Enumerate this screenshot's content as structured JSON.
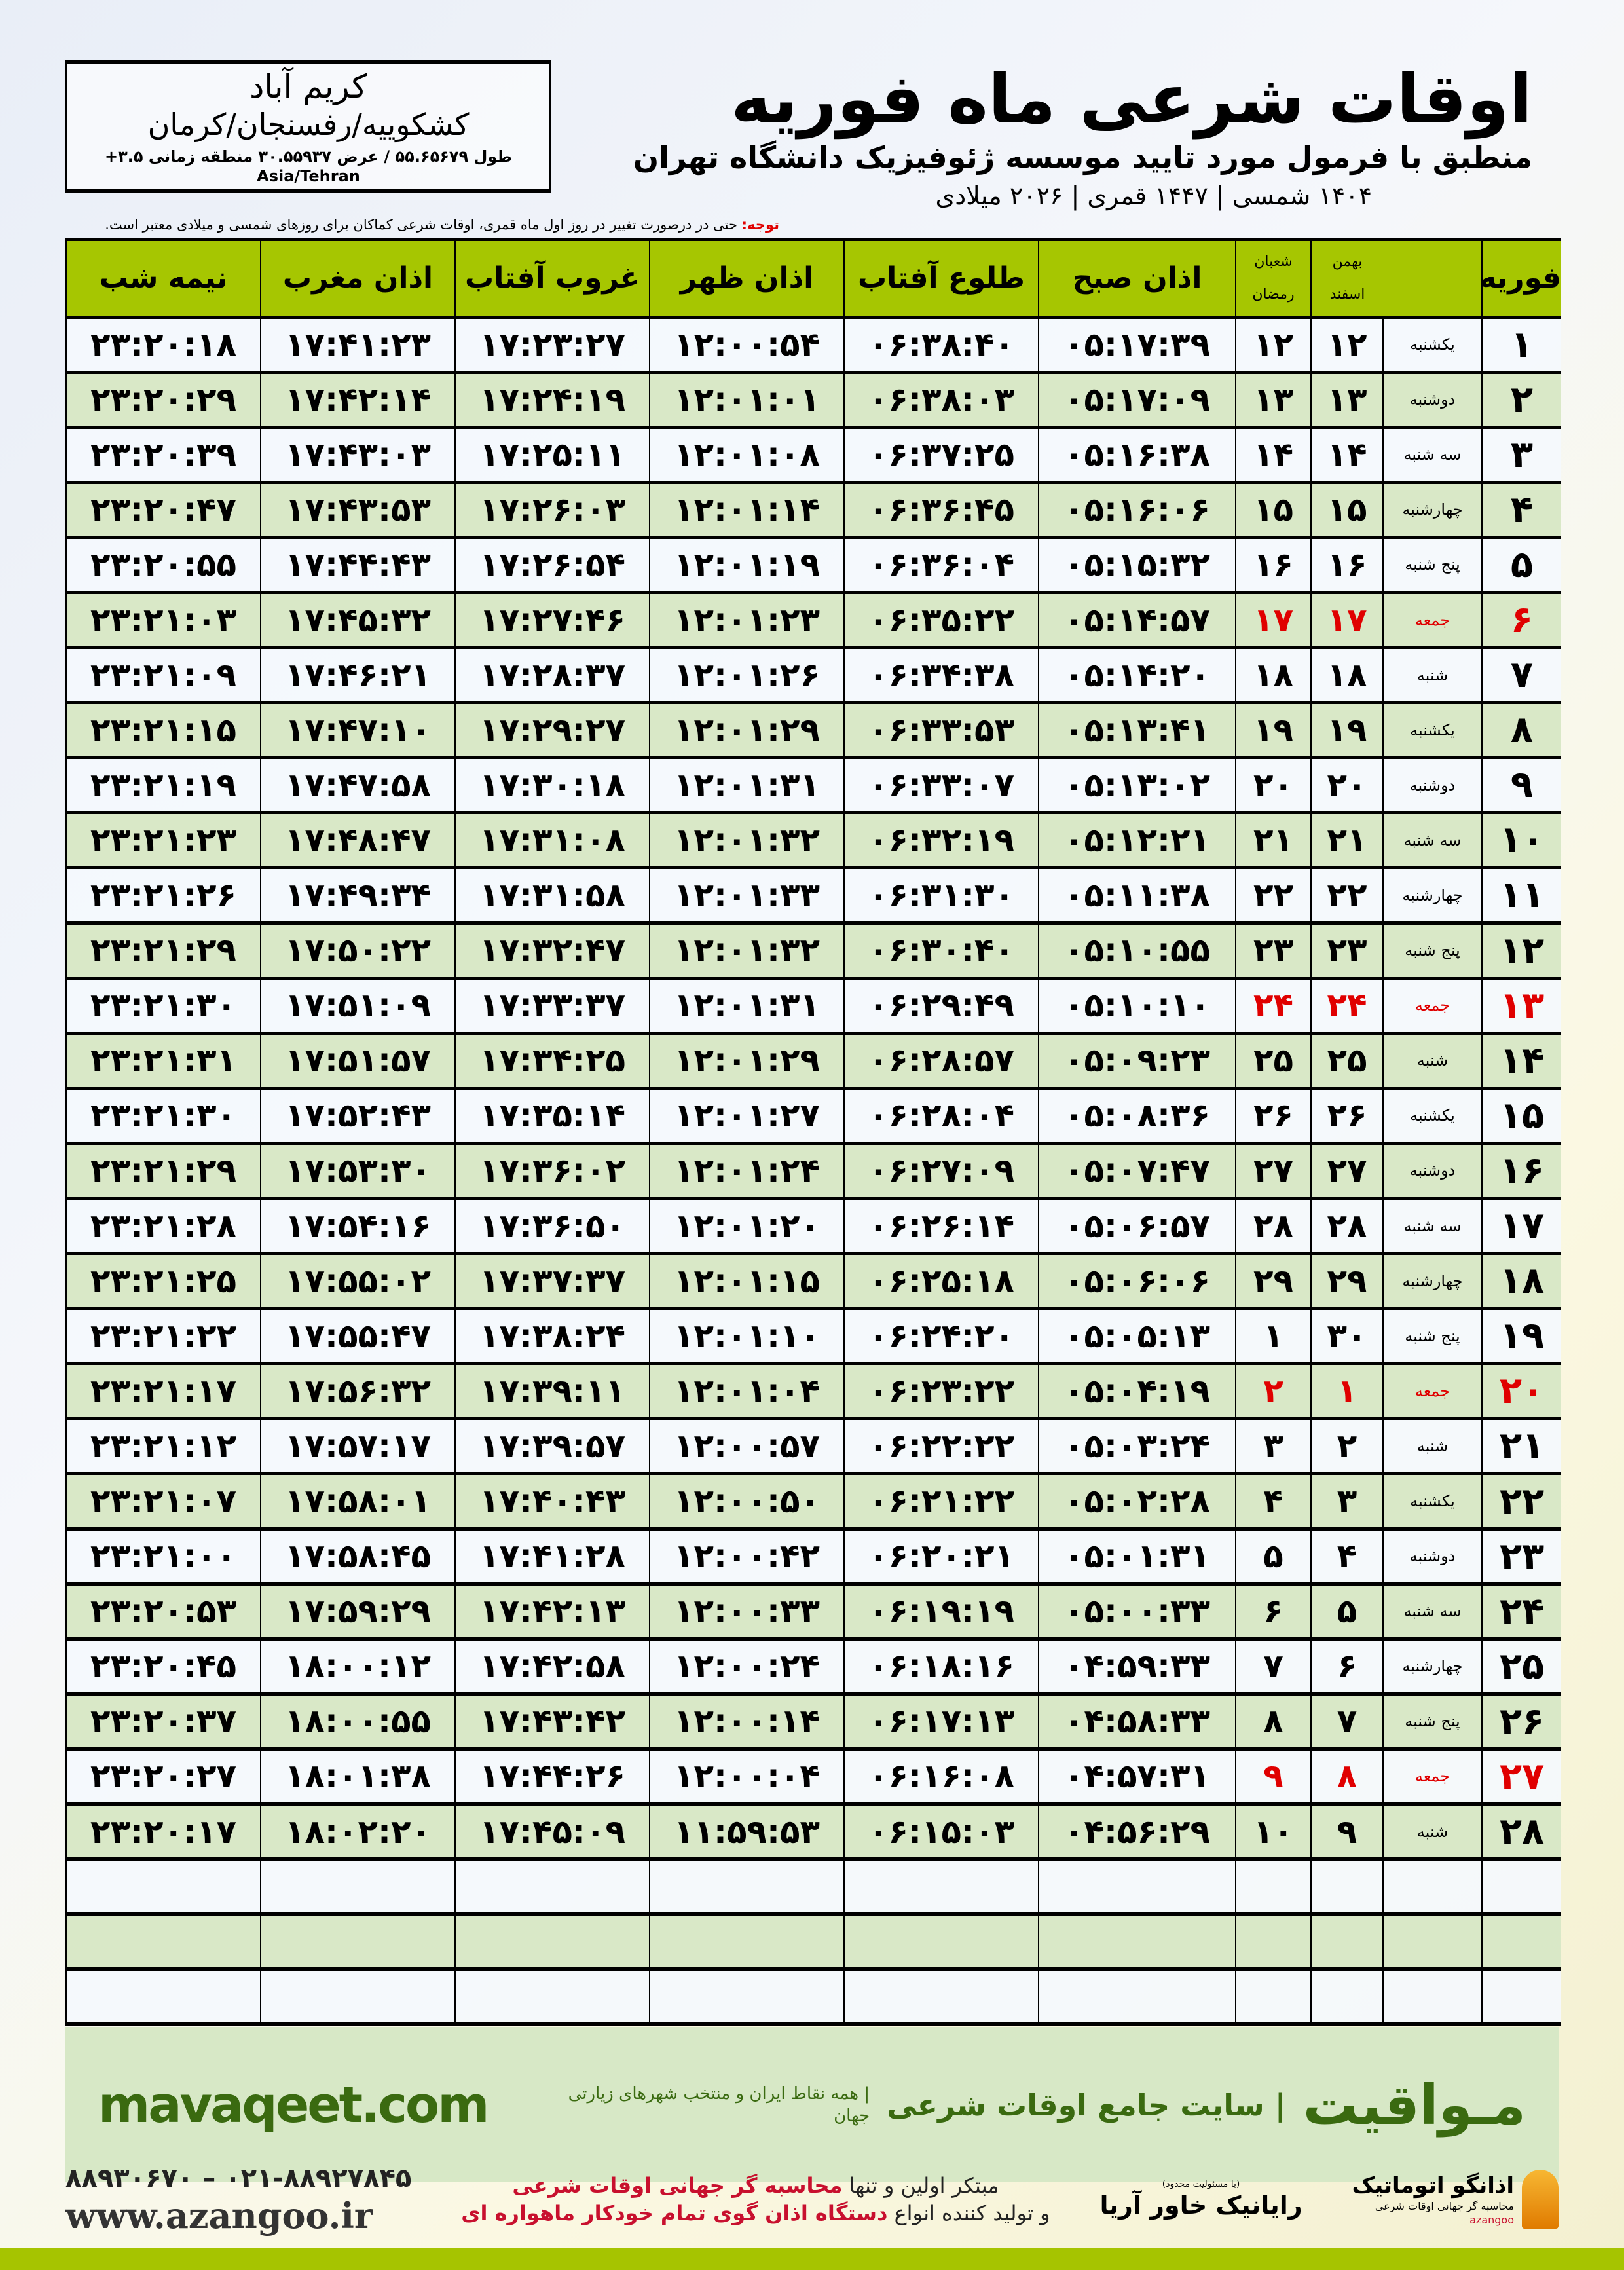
{
  "header": {
    "title": "اوقات شرعی ماه فوریه",
    "subtitle": "منطبق با فرمول مورد تایید موسسه ژئوفیزیک دانشگاه تهران",
    "dateline": "۱۴۰۴ شمسی | ۱۴۴۷ قمری | ۲۰۲۶ میلادی"
  },
  "location": {
    "city": "کریم آباد",
    "region": "کشکوییه/رفسنجان/کرمان",
    "coords": "طول ۵۵.۶۵۶۷۹ / عرض ۳۰.۵۵۹۳۷ منطقه زمانی ۳.۵+ Asia/Tehran"
  },
  "note": {
    "label": "توجه:",
    "text": " حتی در درصورت تغییر در روز اول ماه قمری، اوقات شرعی کماکان برای روزهای شمسی و میلادی معتبر است."
  },
  "columns": {
    "month": "فوریه",
    "shamsi_top": "بهمن",
    "shamsi_bottom": "اسفند",
    "qamari_top": "شعبان",
    "qamari_bottom": "رمضان",
    "fajr": "اذان صبح",
    "sunrise": "طلوع آفتاب",
    "dhuhr": "اذان ظهر",
    "sunset": "غروب آفتاب",
    "maghrib": "اذان مغرب",
    "midnight": "نیمه شب"
  },
  "colors": {
    "header_green": "#a6c601",
    "row_green": "#d9e8c7",
    "friday_red": "#e00000",
    "brand_green": "#3a6a10"
  },
  "rows": [
    [
      "۱",
      "یکشنبه",
      "۱۲",
      "۱۲",
      "۰۵:۱۷:۳۹",
      "۰۶:۳۸:۴۰",
      "۱۲:۰۰:۵۴",
      "۱۷:۲۳:۲۷",
      "۱۷:۴۱:۲۳",
      "۲۳:۲۰:۱۸"
    ],
    [
      "۲",
      "دوشنبه",
      "۱۳",
      "۱۳",
      "۰۵:۱۷:۰۹",
      "۰۶:۳۸:۰۳",
      "۱۲:۰۱:۰۱",
      "۱۷:۲۴:۱۹",
      "۱۷:۴۲:۱۴",
      "۲۳:۲۰:۲۹"
    ],
    [
      "۳",
      "سه شنبه",
      "۱۴",
      "۱۴",
      "۰۵:۱۶:۳۸",
      "۰۶:۳۷:۲۵",
      "۱۲:۰۱:۰۸",
      "۱۷:۲۵:۱۱",
      "۱۷:۴۳:۰۳",
      "۲۳:۲۰:۳۹"
    ],
    [
      "۴",
      "چهارشنبه",
      "۱۵",
      "۱۵",
      "۰۵:۱۶:۰۶",
      "۰۶:۳۶:۴۵",
      "۱۲:۰۱:۱۴",
      "۱۷:۲۶:۰۳",
      "۱۷:۴۳:۵۳",
      "۲۳:۲۰:۴۷"
    ],
    [
      "۵",
      "پنج شنبه",
      "۱۶",
      "۱۶",
      "۰۵:۱۵:۳۲",
      "۰۶:۳۶:۰۴",
      "۱۲:۰۱:۱۹",
      "۱۷:۲۶:۵۴",
      "۱۷:۴۴:۴۳",
      "۲۳:۲۰:۵۵"
    ],
    [
      "۶",
      "جمعه",
      "۱۷",
      "۱۷",
      "۰۵:۱۴:۵۷",
      "۰۶:۳۵:۲۲",
      "۱۲:۰۱:۲۳",
      "۱۷:۲۷:۴۶",
      "۱۷:۴۵:۳۲",
      "۲۳:۲۱:۰۳"
    ],
    [
      "۷",
      "شنبه",
      "۱۸",
      "۱۸",
      "۰۵:۱۴:۲۰",
      "۰۶:۳۴:۳۸",
      "۱۲:۰۱:۲۶",
      "۱۷:۲۸:۳۷",
      "۱۷:۴۶:۲۱",
      "۲۳:۲۱:۰۹"
    ],
    [
      "۸",
      "یکشنبه",
      "۱۹",
      "۱۹",
      "۰۵:۱۳:۴۱",
      "۰۶:۳۳:۵۳",
      "۱۲:۰۱:۲۹",
      "۱۷:۲۹:۲۷",
      "۱۷:۴۷:۱۰",
      "۲۳:۲۱:۱۵"
    ],
    [
      "۹",
      "دوشنبه",
      "۲۰",
      "۲۰",
      "۰۵:۱۳:۰۲",
      "۰۶:۳۳:۰۷",
      "۱۲:۰۱:۳۱",
      "۱۷:۳۰:۱۸",
      "۱۷:۴۷:۵۸",
      "۲۳:۲۱:۱۹"
    ],
    [
      "۱۰",
      "سه شنبه",
      "۲۱",
      "۲۱",
      "۰۵:۱۲:۲۱",
      "۰۶:۳۲:۱۹",
      "۱۲:۰۱:۳۲",
      "۱۷:۳۱:۰۸",
      "۱۷:۴۸:۴۷",
      "۲۳:۲۱:۲۳"
    ],
    [
      "۱۱",
      "چهارشنبه",
      "۲۲",
      "۲۲",
      "۰۵:۱۱:۳۸",
      "۰۶:۳۱:۳۰",
      "۱۲:۰۱:۳۳",
      "۱۷:۳۱:۵۸",
      "۱۷:۴۹:۳۴",
      "۲۳:۲۱:۲۶"
    ],
    [
      "۱۲",
      "پنج شنبه",
      "۲۳",
      "۲۳",
      "۰۵:۱۰:۵۵",
      "۰۶:۳۰:۴۰",
      "۱۲:۰۱:۳۲",
      "۱۷:۳۲:۴۷",
      "۱۷:۵۰:۲۲",
      "۲۳:۲۱:۲۹"
    ],
    [
      "۱۳",
      "جمعه",
      "۲۴",
      "۲۴",
      "۰۵:۱۰:۱۰",
      "۰۶:۲۹:۴۹",
      "۱۲:۰۱:۳۱",
      "۱۷:۳۳:۳۷",
      "۱۷:۵۱:۰۹",
      "۲۳:۲۱:۳۰"
    ],
    [
      "۱۴",
      "شنبه",
      "۲۵",
      "۲۵",
      "۰۵:۰۹:۲۳",
      "۰۶:۲۸:۵۷",
      "۱۲:۰۱:۲۹",
      "۱۷:۳۴:۲۵",
      "۱۷:۵۱:۵۷",
      "۲۳:۲۱:۳۱"
    ],
    [
      "۱۵",
      "یکشنبه",
      "۲۶",
      "۲۶",
      "۰۵:۰۸:۳۶",
      "۰۶:۲۸:۰۴",
      "۱۲:۰۱:۲۷",
      "۱۷:۳۵:۱۴",
      "۱۷:۵۲:۴۳",
      "۲۳:۲۱:۳۰"
    ],
    [
      "۱۶",
      "دوشنبه",
      "۲۷",
      "۲۷",
      "۰۵:۰۷:۴۷",
      "۰۶:۲۷:۰۹",
      "۱۲:۰۱:۲۴",
      "۱۷:۳۶:۰۲",
      "۱۷:۵۳:۳۰",
      "۲۳:۲۱:۲۹"
    ],
    [
      "۱۷",
      "سه شنبه",
      "۲۸",
      "۲۸",
      "۰۵:۰۶:۵۷",
      "۰۶:۲۶:۱۴",
      "۱۲:۰۱:۲۰",
      "۱۷:۳۶:۵۰",
      "۱۷:۵۴:۱۶",
      "۲۳:۲۱:۲۸"
    ],
    [
      "۱۸",
      "چهارشنبه",
      "۲۹",
      "۲۹",
      "۰۵:۰۶:۰۶",
      "۰۶:۲۵:۱۸",
      "۱۲:۰۱:۱۵",
      "۱۷:۳۷:۳۷",
      "۱۷:۵۵:۰۲",
      "۲۳:۲۱:۲۵"
    ],
    [
      "۱۹",
      "پنج شنبه",
      "۳۰",
      "۱",
      "۰۵:۰۵:۱۳",
      "۰۶:۲۴:۲۰",
      "۱۲:۰۱:۱۰",
      "۱۷:۳۸:۲۴",
      "۱۷:۵۵:۴۷",
      "۲۳:۲۱:۲۲"
    ],
    [
      "۲۰",
      "جمعه",
      "۱",
      "۲",
      "۰۵:۰۴:۱۹",
      "۰۶:۲۳:۲۲",
      "۱۲:۰۱:۰۴",
      "۱۷:۳۹:۱۱",
      "۱۷:۵۶:۳۲",
      "۲۳:۲۱:۱۷"
    ],
    [
      "۲۱",
      "شنبه",
      "۲",
      "۳",
      "۰۵:۰۳:۲۴",
      "۰۶:۲۲:۲۲",
      "۱۲:۰۰:۵۷",
      "۱۷:۳۹:۵۷",
      "۱۷:۵۷:۱۷",
      "۲۳:۲۱:۱۲"
    ],
    [
      "۲۲",
      "یکشنبه",
      "۳",
      "۴",
      "۰۵:۰۲:۲۸",
      "۰۶:۲۱:۲۲",
      "۱۲:۰۰:۵۰",
      "۱۷:۴۰:۴۳",
      "۱۷:۵۸:۰۱",
      "۲۳:۲۱:۰۷"
    ],
    [
      "۲۳",
      "دوشنبه",
      "۴",
      "۵",
      "۰۵:۰۱:۳۱",
      "۰۶:۲۰:۲۱",
      "۱۲:۰۰:۴۲",
      "۱۷:۴۱:۲۸",
      "۱۷:۵۸:۴۵",
      "۲۳:۲۱:۰۰"
    ],
    [
      "۲۴",
      "سه شنبه",
      "۵",
      "۶",
      "۰۵:۰۰:۳۳",
      "۰۶:۱۹:۱۹",
      "۱۲:۰۰:۳۳",
      "۱۷:۴۲:۱۳",
      "۱۷:۵۹:۲۹",
      "۲۳:۲۰:۵۳"
    ],
    [
      "۲۵",
      "چهارشنبه",
      "۶",
      "۷",
      "۰۴:۵۹:۳۳",
      "۰۶:۱۸:۱۶",
      "۱۲:۰۰:۲۴",
      "۱۷:۴۲:۵۸",
      "۱۸:۰۰:۱۲",
      "۲۳:۲۰:۴۵"
    ],
    [
      "۲۶",
      "پنج شنبه",
      "۷",
      "۸",
      "۰۴:۵۸:۳۳",
      "۰۶:۱۷:۱۳",
      "۱۲:۰۰:۱۴",
      "۱۷:۴۳:۴۲",
      "۱۸:۰۰:۵۵",
      "۲۳:۲۰:۳۷"
    ],
    [
      "۲۷",
      "جمعه",
      "۸",
      "۹",
      "۰۴:۵۷:۳۱",
      "۰۶:۱۶:۰۸",
      "۱۲:۰۰:۰۴",
      "۱۷:۴۴:۲۶",
      "۱۸:۰۱:۳۸",
      "۲۳:۲۰:۲۷"
    ],
    [
      "۲۸",
      "شنبه",
      "۹",
      "۱۰",
      "۰۴:۵۶:۲۹",
      "۰۶:۱۵:۰۳",
      "۱۱:۵۹:۵۳",
      "۱۷:۴۵:۰۹",
      "۱۸:۰۲:۲۰",
      "۲۳:۲۰:۱۷"
    ]
  ],
  "fridays": [
    "۶",
    "۱۳",
    "۲۰",
    "۲۷"
  ],
  "empty_rows": 3,
  "footer": {
    "mavaqeet_logo": "مـواقیت",
    "mavaqeet_tag": "| سایت جامع اوقات شرعی",
    "mavaqeet_sub": "| همه نقاط ایران و منتخب شهرهای زیارتی جهان",
    "mavaqeet_url": "mavaqeet.com",
    "phones": "۰۲۱-۸۸۹۲۷۸۴۵ – ۸۸۹۳۰۶۷۰",
    "azangoo_url": "www.azangoo.ir",
    "line1_a": "مبتکر اولین و تنها ",
    "line1_b": "محاسبه گر جهانی اوقات شرعی",
    "line2_a": "و تولید کننده انواع ",
    "line2_b": "دستگاه اذان گوی تمام خودکار ماهواره ای",
    "rayanik_note": "(با مسئولیت محدود)",
    "rayanik": "رایانیک خاور آریا",
    "azangoo_name": "اذانگو اتوماتیک",
    "azangoo_sub": "محاسبه گر جهانی اوقات شرعی",
    "azangoo_en": "azangoo"
  }
}
